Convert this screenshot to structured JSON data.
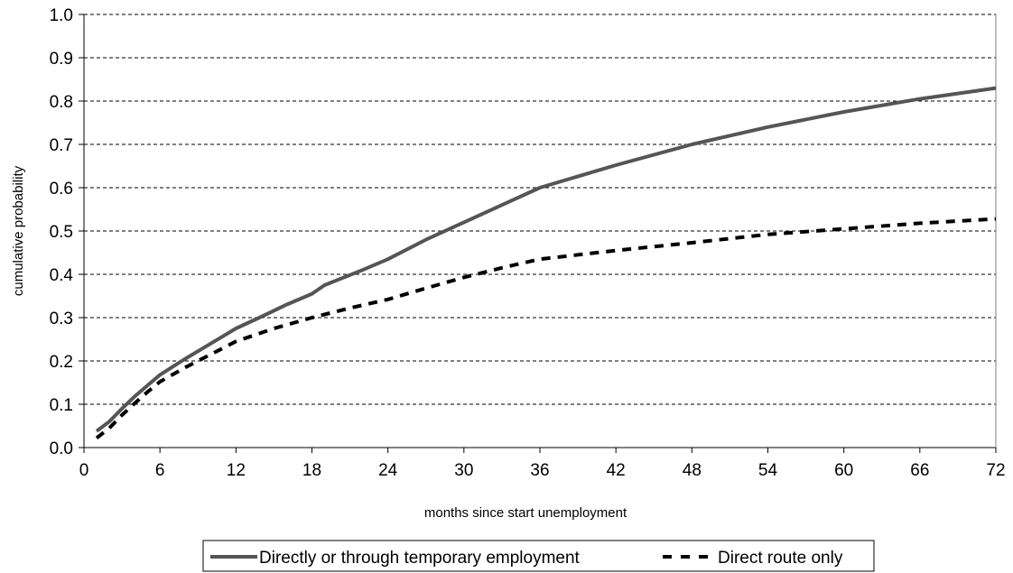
{
  "chart_data": {
    "type": "line",
    "xlabel": "months since start unemployment",
    "ylabel": "cumulative probability",
    "xlim": [
      0,
      72
    ],
    "ylim": [
      0,
      1
    ],
    "x_ticks": [
      "0",
      "6",
      "12",
      "18",
      "24",
      "30",
      "36",
      "42",
      "48",
      "54",
      "60",
      "66",
      "72"
    ],
    "y_ticks": [
      "0.0",
      "0.1",
      "0.2",
      "0.3",
      "0.4",
      "0.5",
      "0.6",
      "0.7",
      "0.8",
      "0.9",
      "1.0"
    ],
    "grid": "horizontal dashed",
    "legend_position": "bottom",
    "series": [
      {
        "name": "Directly or through temporary employment",
        "style": "solid",
        "color": "#555555",
        "points": [
          [
            1,
            0.038
          ],
          [
            2,
            0.06
          ],
          [
            3,
            0.09
          ],
          [
            4,
            0.118
          ],
          [
            5,
            0.143
          ],
          [
            6,
            0.168
          ],
          [
            8,
            0.205
          ],
          [
            10,
            0.24
          ],
          [
            12,
            0.275
          ],
          [
            14,
            0.302
          ],
          [
            16,
            0.33
          ],
          [
            18,
            0.355
          ],
          [
            19,
            0.375
          ],
          [
            22,
            0.41
          ],
          [
            24,
            0.435
          ],
          [
            27,
            0.48
          ],
          [
            30,
            0.52
          ],
          [
            33,
            0.56
          ],
          [
            36,
            0.6
          ],
          [
            42,
            0.652
          ],
          [
            48,
            0.7
          ],
          [
            54,
            0.74
          ],
          [
            60,
            0.775
          ],
          [
            66,
            0.805
          ],
          [
            72,
            0.83
          ]
        ]
      },
      {
        "name": "Direct route only",
        "style": "dashed",
        "color": "#000000",
        "points": [
          [
            1,
            0.022
          ],
          [
            2,
            0.045
          ],
          [
            3,
            0.075
          ],
          [
            4,
            0.102
          ],
          [
            5,
            0.128
          ],
          [
            6,
            0.152
          ],
          [
            8,
            0.185
          ],
          [
            10,
            0.215
          ],
          [
            12,
            0.245
          ],
          [
            15,
            0.275
          ],
          [
            18,
            0.3
          ],
          [
            21,
            0.322
          ],
          [
            24,
            0.342
          ],
          [
            27,
            0.368
          ],
          [
            30,
            0.393
          ],
          [
            33,
            0.415
          ],
          [
            36,
            0.435
          ],
          [
            42,
            0.455
          ],
          [
            48,
            0.473
          ],
          [
            54,
            0.492
          ],
          [
            60,
            0.505
          ],
          [
            66,
            0.518
          ],
          [
            72,
            0.528
          ]
        ]
      }
    ]
  }
}
